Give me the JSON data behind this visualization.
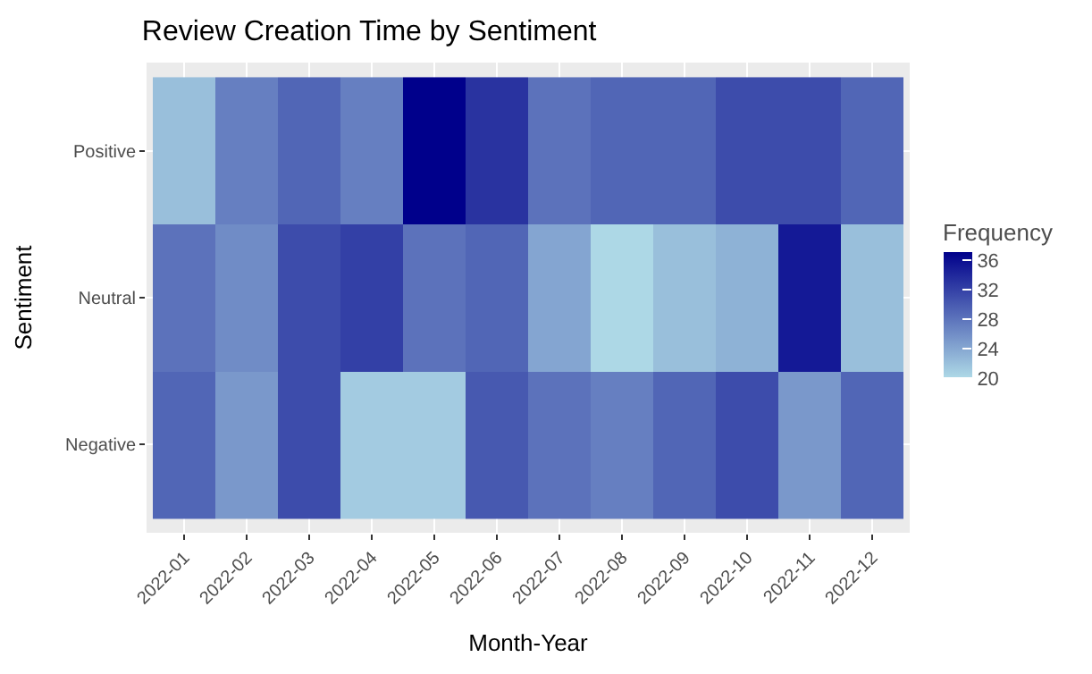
{
  "chart_data": {
    "type": "heatmap",
    "title": "Review Creation Time by Sentiment",
    "xlabel": "Month-Year",
    "ylabel": "Sentiment",
    "clabel": "Frequency",
    "categories": [
      "2022-01",
      "2022-02",
      "2022-03",
      "2022-04",
      "2022-05",
      "2022-06",
      "2022-07",
      "2022-08",
      "2022-09",
      "2022-10",
      "2022-11",
      "2022-12"
    ],
    "y_categories": [
      "Positive",
      "Neutral",
      "Negative"
    ],
    "cells": [
      [
        22,
        27,
        29,
        27,
        37,
        33,
        28,
        29,
        29,
        31,
        31,
        29
      ],
      [
        28,
        26,
        31,
        32,
        28,
        29,
        24,
        20,
        22,
        23,
        35,
        22
      ],
      [
        29,
        25,
        31,
        21,
        21,
        30,
        28,
        27,
        29,
        31,
        25,
        29
      ]
    ],
    "colors": [
      "#add8e6",
      "#00008b"
    ],
    "clim": [
      20,
      37
    ],
    "cticks": [
      20,
      24,
      28,
      32,
      36
    ],
    "grid": true
  }
}
